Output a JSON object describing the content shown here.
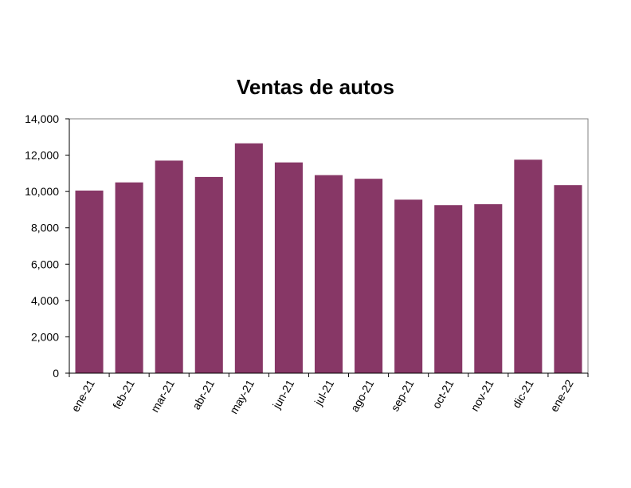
{
  "chart_data": {
    "type": "bar",
    "title": "Ventas de autos",
    "xlabel": "",
    "ylabel": "",
    "categories": [
      "ene-21",
      "feb-21",
      "mar-21",
      "abr-21",
      "may-21",
      "jun-21",
      "jul-21",
      "ago-21",
      "sep-21",
      "oct-21",
      "nov-21",
      "dic-21",
      "ene-22"
    ],
    "values": [
      10050,
      10500,
      11700,
      10800,
      12650,
      11600,
      10900,
      10700,
      9550,
      9250,
      9300,
      11750,
      10350
    ],
    "ylim": [
      0,
      14000
    ],
    "yticks": [
      0,
      2000,
      4000,
      6000,
      8000,
      10000,
      12000,
      14000
    ],
    "ytick_labels": [
      "0",
      "2,000",
      "4,000",
      "6,000",
      "8,000",
      "10,000",
      "12,000",
      "14,000"
    ],
    "grid": false,
    "legend": "none",
    "colors": {
      "bar": "#873766",
      "axis": "#808080"
    }
  }
}
